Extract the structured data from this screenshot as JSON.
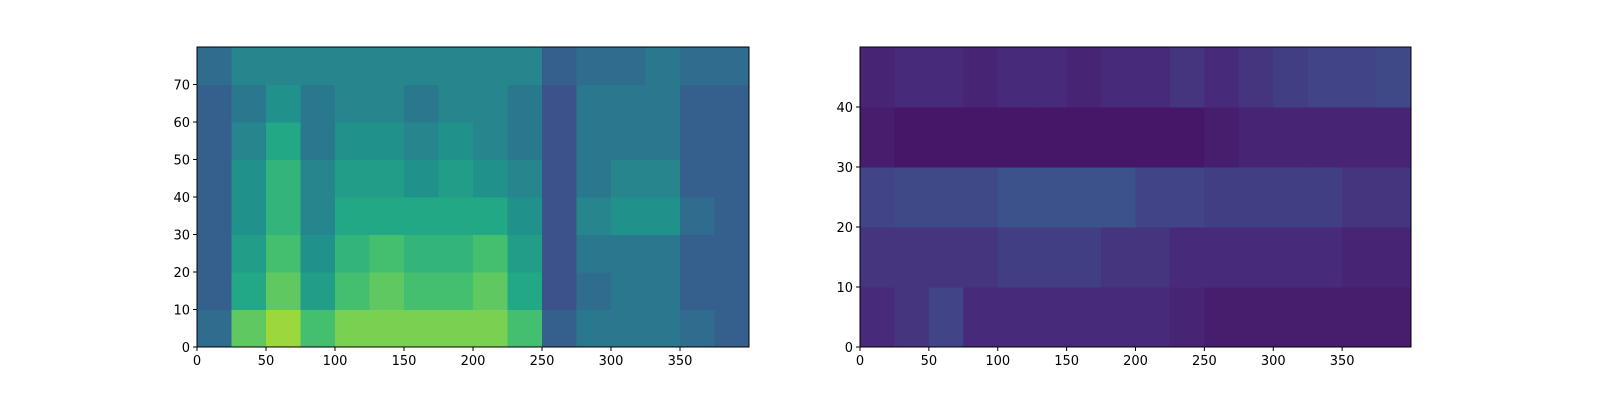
{
  "chart_data": [
    {
      "type": "heatmap",
      "colormap": "viridis",
      "xbins": [
        0,
        25,
        50,
        75,
        100,
        125,
        150,
        175,
        200,
        225,
        250,
        275,
        300,
        325,
        350,
        375,
        400
      ],
      "ybins": [
        0,
        10,
        20,
        30,
        40,
        50,
        60,
        70,
        80
      ],
      "z": [
        [
          0.35,
          0.75,
          0.85,
          0.7,
          0.8,
          0.8,
          0.8,
          0.8,
          0.8,
          0.7,
          0.3,
          0.4,
          0.4,
          0.4,
          0.35,
          0.3
        ],
        [
          0.3,
          0.6,
          0.75,
          0.55,
          0.7,
          0.75,
          0.7,
          0.7,
          0.75,
          0.6,
          0.25,
          0.35,
          0.4,
          0.4,
          0.3,
          0.3
        ],
        [
          0.3,
          0.55,
          0.7,
          0.5,
          0.65,
          0.7,
          0.65,
          0.65,
          0.7,
          0.55,
          0.25,
          0.4,
          0.4,
          0.4,
          0.3,
          0.3
        ],
        [
          0.3,
          0.5,
          0.65,
          0.45,
          0.6,
          0.6,
          0.6,
          0.6,
          0.6,
          0.5,
          0.25,
          0.45,
          0.5,
          0.5,
          0.35,
          0.3
        ],
        [
          0.3,
          0.5,
          0.65,
          0.45,
          0.55,
          0.55,
          0.5,
          0.55,
          0.5,
          0.45,
          0.25,
          0.4,
          0.45,
          0.45,
          0.3,
          0.3
        ],
        [
          0.3,
          0.45,
          0.6,
          0.4,
          0.5,
          0.5,
          0.45,
          0.5,
          0.45,
          0.4,
          0.25,
          0.4,
          0.4,
          0.4,
          0.3,
          0.3
        ],
        [
          0.3,
          0.4,
          0.5,
          0.4,
          0.45,
          0.45,
          0.4,
          0.45,
          0.45,
          0.4,
          0.25,
          0.4,
          0.4,
          0.4,
          0.3,
          0.3
        ],
        [
          0.35,
          0.45,
          0.45,
          0.45,
          0.45,
          0.45,
          0.45,
          0.45,
          0.45,
          0.45,
          0.3,
          0.35,
          0.35,
          0.4,
          0.35,
          0.35
        ]
      ],
      "xlim": [
        0,
        400
      ],
      "ylim": [
        0,
        80
      ],
      "xticks": [
        0,
        50,
        100,
        150,
        200,
        250,
        300,
        350
      ],
      "yticks": [
        0,
        10,
        20,
        30,
        40,
        50,
        60,
        70
      ]
    },
    {
      "type": "heatmap",
      "colormap": "viridis",
      "xbins": [
        0,
        25,
        50,
        75,
        100,
        125,
        150,
        175,
        200,
        225,
        250,
        275,
        300,
        325,
        350,
        375,
        400
      ],
      "ybins": [
        0,
        10,
        20,
        30,
        40,
        50
      ],
      "z": [
        [
          0.12,
          0.15,
          0.2,
          0.12,
          0.12,
          0.12,
          0.12,
          0.12,
          0.12,
          0.1,
          0.08,
          0.08,
          0.08,
          0.08,
          0.08,
          0.08
        ],
        [
          0.15,
          0.15,
          0.15,
          0.15,
          0.18,
          0.18,
          0.18,
          0.15,
          0.15,
          0.12,
          0.12,
          0.12,
          0.12,
          0.12,
          0.1,
          0.1
        ],
        [
          0.2,
          0.22,
          0.22,
          0.22,
          0.25,
          0.25,
          0.25,
          0.25,
          0.2,
          0.2,
          0.18,
          0.18,
          0.18,
          0.18,
          0.15,
          0.15
        ],
        [
          0.08,
          0.06,
          0.06,
          0.06,
          0.06,
          0.06,
          0.06,
          0.06,
          0.06,
          0.06,
          0.08,
          0.1,
          0.1,
          0.1,
          0.1,
          0.1
        ],
        [
          0.1,
          0.12,
          0.12,
          0.1,
          0.12,
          0.12,
          0.1,
          0.12,
          0.12,
          0.15,
          0.12,
          0.15,
          0.18,
          0.2,
          0.2,
          0.22
        ]
      ],
      "xlim": [
        0,
        400
      ],
      "ylim": [
        0,
        50
      ],
      "xticks": [
        0,
        50,
        100,
        150,
        200,
        250,
        300,
        350
      ],
      "yticks": [
        0,
        10,
        20,
        30,
        40
      ]
    }
  ]
}
